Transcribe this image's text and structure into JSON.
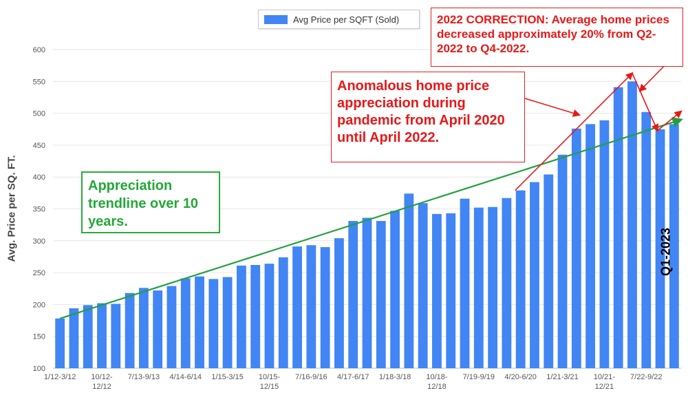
{
  "chart_data": {
    "type": "bar",
    "ylabel": "Avg. Price per SQ. FT.",
    "xlabel": "",
    "ylim": [
      100,
      600
    ],
    "yticks": [
      100,
      150,
      200,
      250,
      300,
      350,
      400,
      450,
      500,
      550,
      600
    ],
    "grid": true,
    "legend_position": "top-center",
    "tick_labels": [
      {
        "index": 0,
        "line1": "1/12-3/12",
        "line2": ""
      },
      {
        "index": 3,
        "line1": "10/12-",
        "line2": "12/12"
      },
      {
        "index": 6,
        "line1": "7/13-9/13",
        "line2": ""
      },
      {
        "index": 9,
        "line1": "4/14-6/14",
        "line2": ""
      },
      {
        "index": 12,
        "line1": "1/15-3/15",
        "line2": ""
      },
      {
        "index": 15,
        "line1": "10/15-",
        "line2": "12/15"
      },
      {
        "index": 18,
        "line1": "7/16-9/16",
        "line2": ""
      },
      {
        "index": 21,
        "line1": "4/17-6/17",
        "line2": ""
      },
      {
        "index": 24,
        "line1": "1/18-3/18",
        "line2": ""
      },
      {
        "index": 27,
        "line1": "10/18-",
        "line2": "12/18"
      },
      {
        "index": 30,
        "line1": "7/19-9/19",
        "line2": ""
      },
      {
        "index": 33,
        "line1": "4/20-6/20",
        "line2": ""
      },
      {
        "index": 36,
        "line1": "1/21-3/21",
        "line2": ""
      },
      {
        "index": 39,
        "line1": "10/21-",
        "line2": "12/21"
      },
      {
        "index": 42,
        "line1": "7/22-9/22",
        "line2": ""
      }
    ],
    "series": [
      {
        "name": "Avg Price per SQFT (Sold)",
        "color": "#4285f4",
        "values": [
          178,
          194,
          199,
          202,
          201,
          218,
          226,
          222,
          229,
          241,
          244,
          240,
          243,
          261,
          262,
          264,
          274,
          291,
          293,
          290,
          304,
          331,
          336,
          331,
          347,
          374,
          359,
          342,
          343,
          366,
          352,
          353,
          367,
          379,
          392,
          404,
          435,
          476,
          483,
          489,
          541,
          550,
          502,
          475,
          483
        ]
      }
    ],
    "trendline": {
      "color": "#22a040",
      "from": {
        "index": 0,
        "value": 178
      },
      "to": {
        "index": 44.5,
        "value": 490
      }
    },
    "annotations": [
      {
        "id": "correction",
        "color": "#e81818",
        "text": "2022 CORRECTION:  Average home prices decreased approximately 20% from Q2-2022 to Q4-2022."
      },
      {
        "id": "anomalous",
        "color": "#e81818",
        "text": "Anomalous home price appreciation during pandemic from April 2020 until April 2022."
      },
      {
        "id": "trend",
        "color": "#22a836",
        "text": "Appreciation trendline over 10 years."
      },
      {
        "id": "q1",
        "color": "#000000",
        "text": "Q1-2023"
      }
    ]
  }
}
